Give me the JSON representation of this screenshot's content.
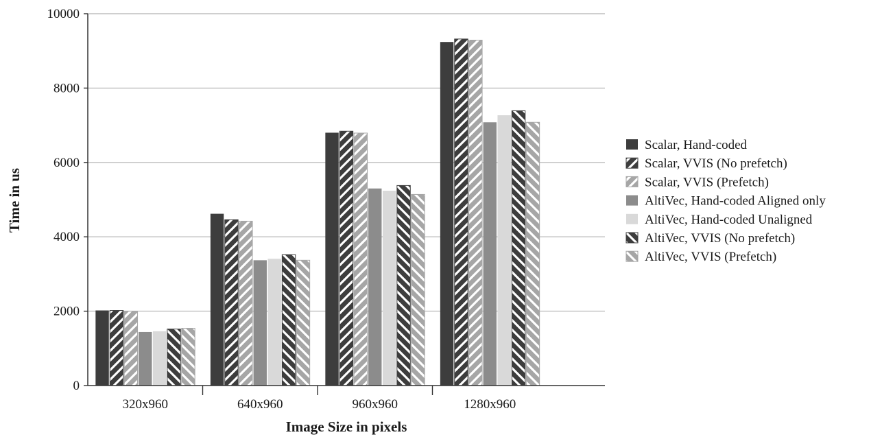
{
  "chart_data": {
    "type": "bar",
    "title": "",
    "xlabel": "Image Size in pixels",
    "ylabel": "Time in us",
    "ylim": [
      0,
      10000
    ],
    "yticks": [
      0,
      2000,
      4000,
      6000,
      8000,
      10000
    ],
    "grid": true,
    "legend_position": "right",
    "categories": [
      "320x960",
      "640x960",
      "960x960",
      "1280x960"
    ],
    "series": [
      {
        "name": "Scalar, Hand-coded",
        "values": [
          2020,
          4620,
          6800,
          9240
        ],
        "color": "#3d3d3d",
        "pattern": "solid"
      },
      {
        "name": "Scalar, VVIS (No prefetch)",
        "values": [
          2020,
          4460,
          6840,
          9320
        ],
        "color": "#3d3d3d",
        "pattern": "hatch-forward"
      },
      {
        "name": "Scalar, VVIS (Prefetch)",
        "values": [
          2000,
          4420,
          6790,
          9290
        ],
        "color": "#a6a6a6",
        "pattern": "hatch-forward"
      },
      {
        "name": "AltiVec, Hand-coded Aligned only",
        "values": [
          1440,
          3370,
          5300,
          7080
        ],
        "color": "#8c8c8c",
        "pattern": "solid"
      },
      {
        "name": "AltiVec, Hand-coded Unaligned",
        "values": [
          1460,
          3410,
          5240,
          7270
        ],
        "color": "#d9d9d9",
        "pattern": "solid"
      },
      {
        "name": "AltiVec, VVIS (No prefetch)",
        "values": [
          1520,
          3520,
          5380,
          7390
        ],
        "color": "#3d3d3d",
        "pattern": "hatch-back"
      },
      {
        "name": "AltiVec, VVIS (Prefetch)",
        "values": [
          1540,
          3370,
          5140,
          7080
        ],
        "color": "#a6a6a6",
        "pattern": "hatch-back"
      }
    ]
  }
}
